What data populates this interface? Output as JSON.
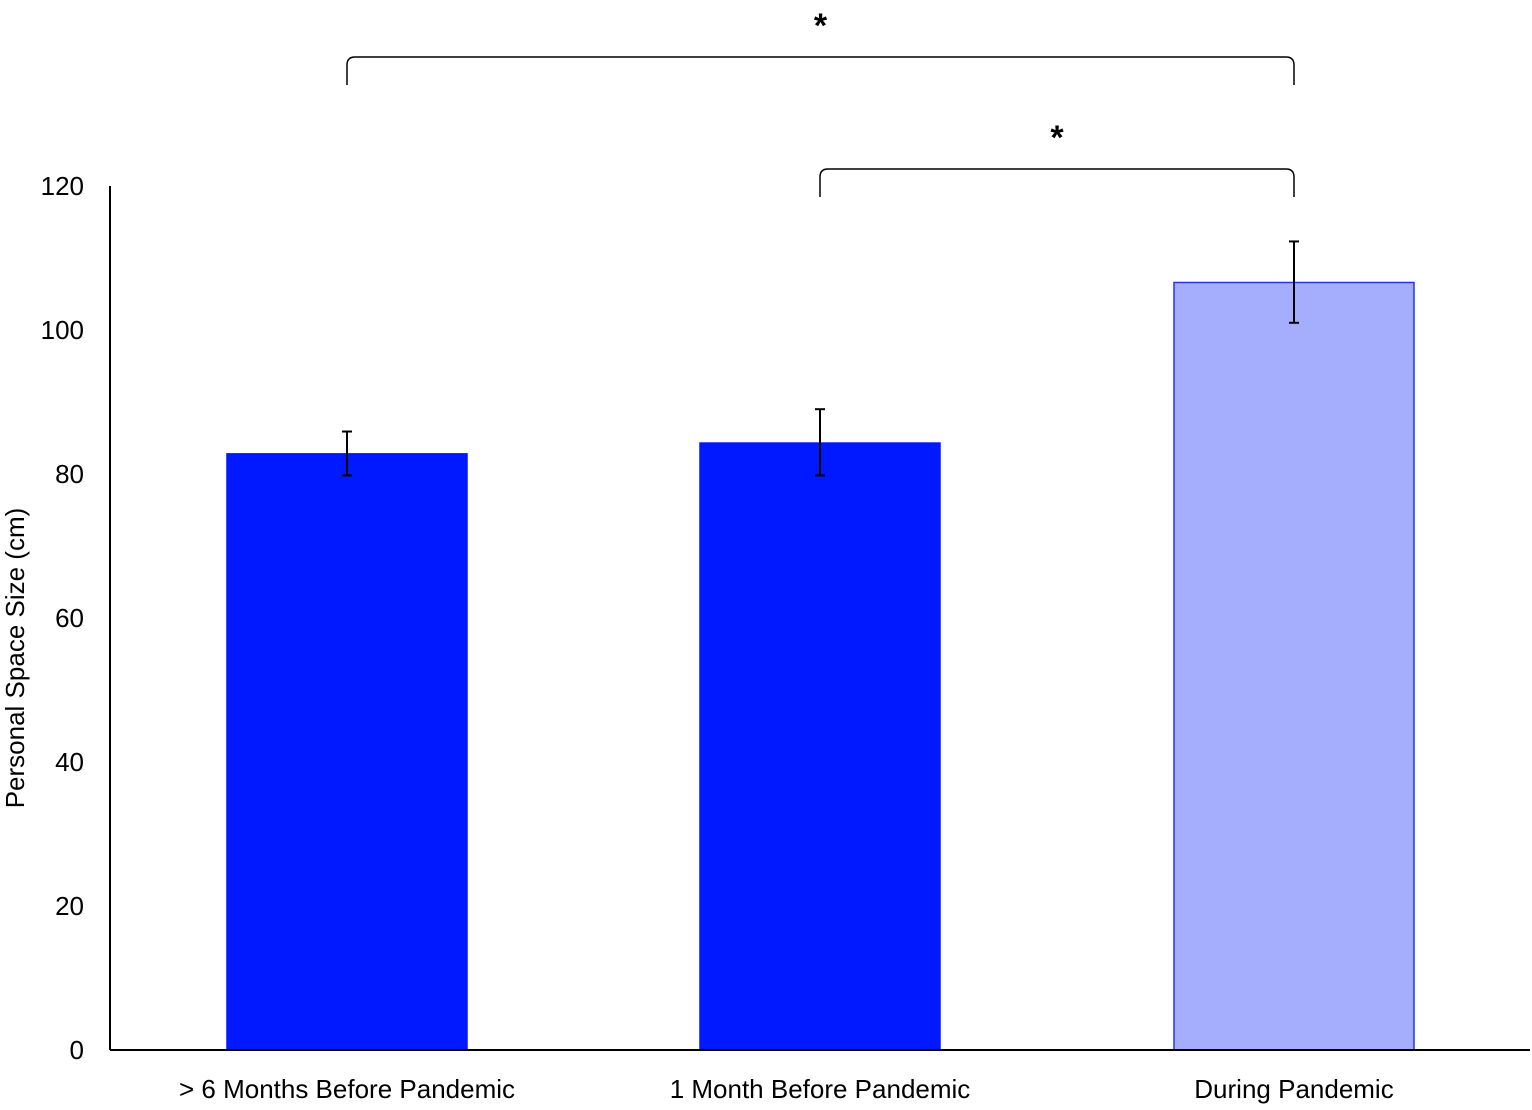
{
  "chart_data": {
    "type": "bar",
    "title": "",
    "xlabel": "",
    "ylabel": "Personal Space Size (cm)",
    "ylim": [
      0,
      120
    ],
    "yticks": [
      0,
      20,
      40,
      60,
      80,
      100,
      120
    ],
    "grid": false,
    "legend": "none",
    "categories": [
      "> 6 Months Before Pandemic",
      "1 Month Before Pandemic",
      "During Pandemic"
    ],
    "values": [
      82.8,
      84.3,
      106.6
    ],
    "error_low": [
      79.8,
      79.8,
      101.0
    ],
    "error_high": [
      85.9,
      89.0,
      112.3
    ],
    "bar_colors": [
      "#0019FF",
      "#0019FF",
      "#A5AEFC"
    ],
    "bar_edge_colors": [
      "#0019FF",
      "#0019FF",
      "#2438E0"
    ],
    "significance": [
      {
        "from": 0,
        "to": 2,
        "label": "*"
      },
      {
        "from": 1,
        "to": 2,
        "label": "*"
      }
    ]
  }
}
